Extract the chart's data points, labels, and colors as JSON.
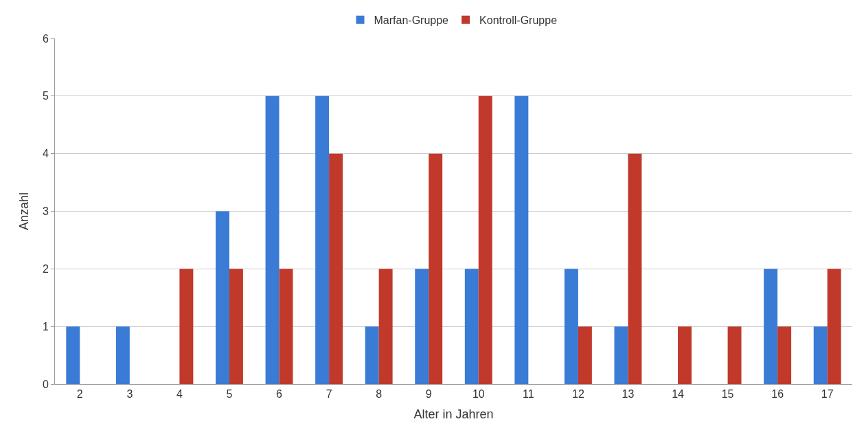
{
  "chart_data": {
    "type": "bar",
    "xlabel": "Alter in Jahren",
    "ylabel": "Anzahl",
    "categories": [
      "2",
      "3",
      "4",
      "5",
      "6",
      "7",
      "8",
      "9",
      "10",
      "11",
      "12",
      "13",
      "14",
      "15",
      "16",
      "17"
    ],
    "series": [
      {
        "name": "Marfan-Gruppe",
        "color": "#3a7bd5",
        "values": [
          1,
          1,
          0,
          3,
          5,
          5,
          1,
          2,
          2,
          5,
          2,
          1,
          0,
          0,
          2,
          1
        ]
      },
      {
        "name": "Kontroll-Gruppe",
        "color": "#c0392b",
        "values": [
          0,
          0,
          2,
          2,
          2,
          4,
          2,
          4,
          5,
          0,
          1,
          4,
          1,
          1,
          1,
          2
        ]
      }
    ],
    "ylim": [
      0,
      6
    ],
    "yticks": [
      0,
      1,
      2,
      3,
      4,
      5,
      6
    ],
    "grid": "y",
    "legend": "top"
  }
}
